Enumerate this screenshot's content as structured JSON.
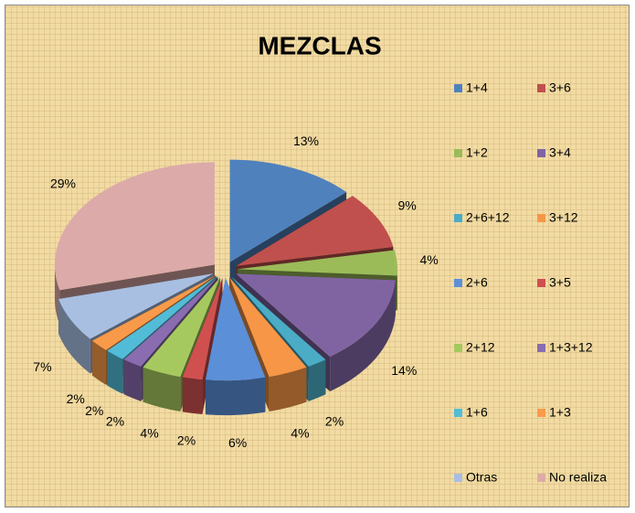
{
  "chart_data": {
    "type": "pie",
    "title": "MEZCLAS",
    "categories": [
      "1+4",
      "3+6",
      "1+2",
      "3+4",
      "2+6+12",
      "3+12",
      "2+6",
      "3+5",
      "2+12",
      "1+3+12",
      "1+6",
      "1+3",
      "Otras",
      "No realiza"
    ],
    "values": [
      13,
      9,
      4,
      14,
      2,
      4,
      6,
      2,
      4,
      2,
      2,
      2,
      7,
      29
    ],
    "value_labels": [
      "13%",
      "9%",
      "4%",
      "14%",
      "2%",
      "4%",
      "6%",
      "2%",
      "4%",
      "2%",
      "2%",
      "2%",
      "7%",
      "29%"
    ],
    "colors": [
      "#4f81bd",
      "#c0504d",
      "#9bbb59",
      "#8064a2",
      "#4bacc6",
      "#f79646",
      "#5b8fd8",
      "#d05050",
      "#a6c95f",
      "#8a6cb0",
      "#52bcd8",
      "#f99a4a",
      "#a8bfe2",
      "#dcaaa9"
    ],
    "legend": "right"
  }
}
